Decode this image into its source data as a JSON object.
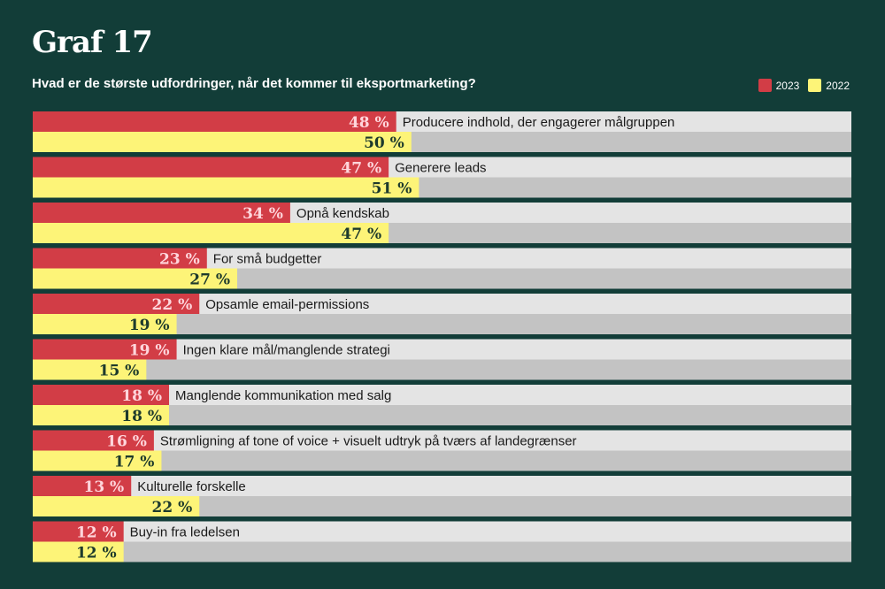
{
  "chart_data": {
    "type": "bar",
    "orientation": "horizontal",
    "title": "Graf 17",
    "subtitle": "Hvad er de største udfordringer, når det kommer til eksportmarketing?",
    "legend_position": "top-right",
    "colors": {
      "2023": "#d23d46",
      "2022": "#fdf478",
      "track_top": "#e4e4e4",
      "track_bottom": "#c3c3c3",
      "label_2023": "#ffd6dc",
      "label_2022": "#1d3a2c"
    },
    "categories": [
      "Producere indhold, der engagerer målgruppen",
      "Generere leads",
      "Opnå kendskab",
      "For små budgetter",
      "Opsamle email-permissions",
      "Ingen klare mål/manglende strategi",
      "Manglende kommunikation med salg",
      "Strømligning af tone of voice + visuelt udtryk på tværs af landegrænser",
      "Kulturelle forskelle",
      "Buy-in fra ledelsen"
    ],
    "series": [
      {
        "name": "2023",
        "values": [
          48,
          47,
          34,
          23,
          22,
          19,
          18,
          16,
          13,
          12
        ]
      },
      {
        "name": "2022",
        "values": [
          50,
          51,
          47,
          27,
          19,
          15,
          18,
          17,
          22,
          12
        ]
      }
    ],
    "value_suffix": " %",
    "xlim": [
      0,
      100
    ]
  }
}
